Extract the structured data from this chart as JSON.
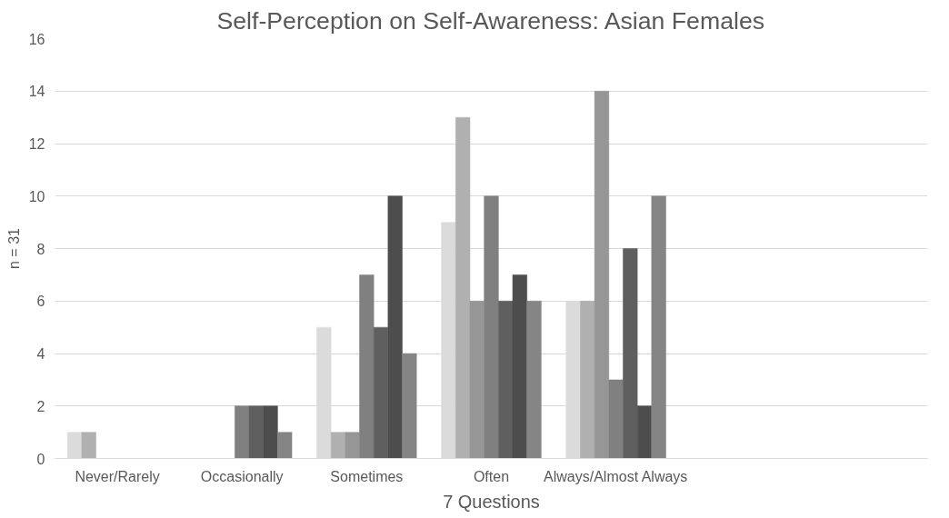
{
  "chart_data": {
    "type": "bar",
    "title": "Self-Perception on Self-Awareness: Asian Females",
    "xlabel": "7 Questions",
    "ylabel": "n = 31",
    "categories": [
      "Never/Rarely",
      "Occasionally",
      "Sometimes",
      "Often",
      "Always/Almost Always",
      null,
      null
    ],
    "series": [
      {
        "color": "#dbdbdb",
        "values": [
          1,
          0,
          5,
          9,
          6,
          null,
          null
        ]
      },
      {
        "color": "#b0b0b0",
        "values": [
          1,
          0,
          1,
          13,
          6,
          null,
          null
        ]
      },
      {
        "color": "#969696",
        "values": [
          0,
          0,
          1,
          6,
          14,
          null,
          null
        ]
      },
      {
        "color": "#808080",
        "values": [
          0,
          2,
          7,
          10,
          3,
          null,
          null
        ]
      },
      {
        "color": "#5f5f5f",
        "values": [
          0,
          2,
          5,
          6,
          8,
          null,
          null
        ]
      },
      {
        "color": "#4d4d4d",
        "values": [
          0,
          2,
          10,
          7,
          2,
          null,
          null
        ]
      },
      {
        "color": "#858585",
        "values": [
          0,
          1,
          4,
          6,
          10,
          null,
          null
        ]
      }
    ],
    "ylim": [
      0,
      16
    ],
    "yticks": [
      0,
      2,
      4,
      6,
      8,
      10,
      12,
      14,
      16
    ],
    "grid": "y"
  }
}
